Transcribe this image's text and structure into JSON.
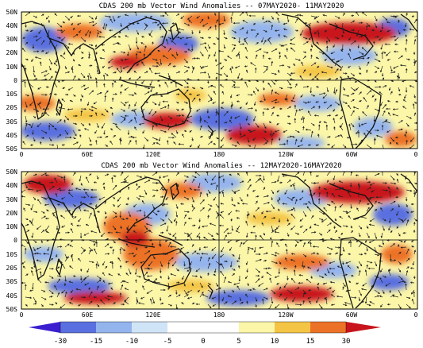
{
  "colors": {
    "neg_strong": "#3a1fd0",
    "neg_med": "#5a70e0",
    "neg_light": "#94b4ee",
    "neg_faint": "#cfe4f6",
    "neutral": "#ffffff",
    "pos_faint": "#fbf6a8",
    "pos_light": "#f4c445",
    "pos_med": "#ec7228",
    "pos_strong": "#c8141c",
    "coast": "#111111",
    "vector": "#222222"
  },
  "panels": [
    {
      "title": "CDAS 200 mb Vector Wind Anomalies -- 07MAY2020- 11MAY2020",
      "lat_labels": [
        "50N",
        "40N",
        "30N",
        "20N",
        "10N",
        "0",
        "10S",
        "20S",
        "30S",
        "40S",
        "50S"
      ],
      "lon_labels": [
        "0",
        "60E",
        "120E",
        "180",
        "120W",
        "60W",
        "0"
      ]
    },
    {
      "title": "CDAS 200 mb Vector Wind Anomalies -- 12MAY2020-16MAY2020",
      "lat_labels": [
        "50N",
        "40N",
        "30N",
        "20N",
        "10N",
        "0",
        "10S",
        "20S",
        "30S",
        "40S",
        "50S"
      ],
      "lon_labels": [
        "0",
        "60E",
        "120E",
        "180",
        "120W",
        "60W",
        "0"
      ]
    }
  ],
  "colorbar": {
    "labels": [
      "-30",
      "-15",
      "-10",
      "-5",
      "0",
      "5",
      "10",
      "15",
      "30"
    ]
  }
}
